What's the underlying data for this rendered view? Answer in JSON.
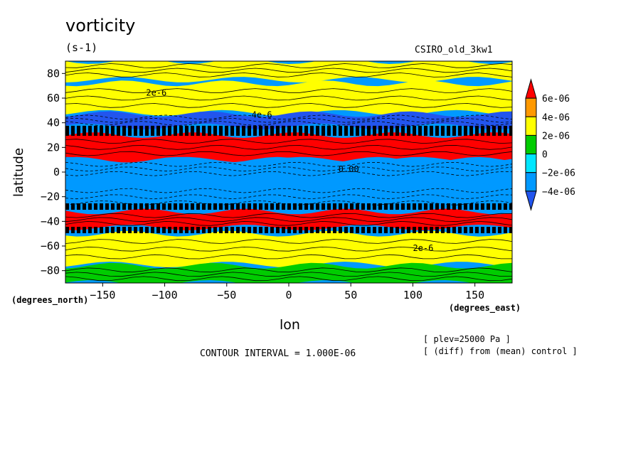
{
  "chart_data": {
    "type": "heatmap",
    "title": "vorticity",
    "units": "(s-1)",
    "subtitle": "CSIRO_old_3kw1",
    "xlabel": "lon",
    "ylabel": "latitude",
    "x_units": "(degrees_east)",
    "y_units": "(degrees_north)",
    "xlim": [
      -180,
      180
    ],
    "ylim": [
      -90,
      90
    ],
    "x_ticks": [
      -150,
      -100,
      -50,
      0,
      50,
      100,
      150
    ],
    "y_ticks": [
      80,
      60,
      40,
      20,
      0,
      -20,
      -40,
      -60,
      -80
    ],
    "x_tick_labels": [
      "−150",
      "−100",
      "−50",
      "0",
      "50",
      "100",
      "150"
    ],
    "y_tick_labels": [
      "80",
      "60",
      "40",
      "20",
      "0",
      "−20",
      "−40",
      "−60",
      "−80"
    ],
    "contour_interval": "CONTOUR INTERVAL = 1.000E-06",
    "notes": [
      "[ plev=25000 Pa ]",
      "[ (diff) from (mean) control ]"
    ],
    "colorbar": {
      "levels": [
        "6e-06",
        "4e-06",
        "2e-06",
        "0",
        "−2e-06",
        "−4e-06"
      ],
      "colors": [
        "#ff0000",
        "#ff9900",
        "#ffff00",
        "#00cc00",
        "#00e6ff",
        "#0099ff",
        "#2255ee"
      ]
    },
    "contour_labels": [
      "2e-6",
      "4e-6",
      "0.00",
      "2e-6"
    ],
    "fields": [
      {
        "lat_range": [
          75,
          90
        ],
        "value": 2e-06
      },
      {
        "lat_range": [
          48,
          72
        ],
        "value": 3e-06
      },
      {
        "lat_range": [
          37,
          47
        ],
        "value": -5e-06
      },
      {
        "lat_range": [
          10,
          30
        ],
        "value": 7e-06
      },
      {
        "lat_range": [
          -5,
          10
        ],
        "value": -4e-06
      },
      {
        "lat_range": [
          -30,
          -10
        ],
        "value": -3e-06
      },
      {
        "lat_range": [
          -45,
          -32
        ],
        "value": 7e-06
      },
      {
        "lat_range": [
          -75,
          -50
        ],
        "value": 2e-06
      },
      {
        "lat_range": [
          -90,
          -76
        ],
        "value": 1e-06
      }
    ]
  }
}
